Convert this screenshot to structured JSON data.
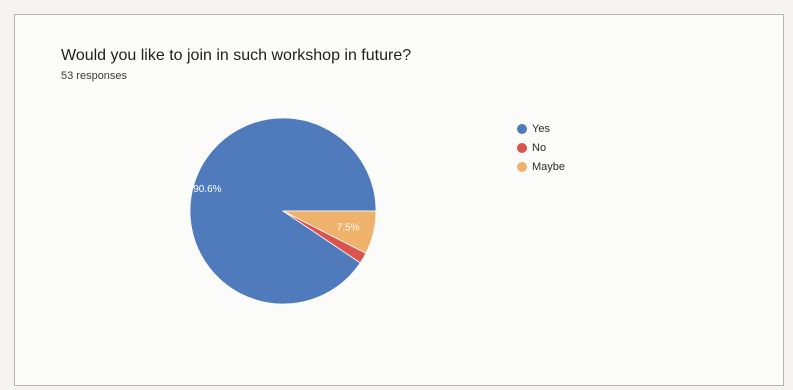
{
  "chart_data": {
    "type": "pie",
    "title": "Would you like to join in such workshop in future?",
    "subtitle": "53 responses",
    "categories": [
      "Yes",
      "No",
      "Maybe"
    ],
    "values": [
      90.6,
      1.9,
      7.5
    ],
    "data_labels": [
      "90.6%",
      "",
      "7.5%"
    ],
    "colors": [
      "#4f7bbd",
      "#d9534f",
      "#efb26b"
    ],
    "legend_position": "right"
  }
}
